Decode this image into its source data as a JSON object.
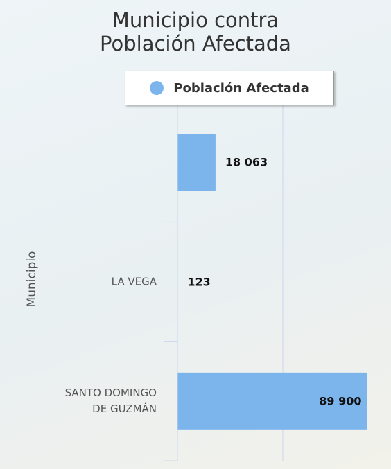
{
  "chart_data": {
    "type": "bar",
    "orientation": "horizontal",
    "title": "Municipio contra Población Afectada",
    "y_axis_label": "Municipio",
    "categories": [
      null,
      "LA VEGA",
      "SANTO DOMINGO DE GUZMÁN"
    ],
    "series": [
      {
        "name": "Población Afectada",
        "color": "#7cb5ec",
        "values": [
          18063,
          123,
          89900
        ],
        "value_labels": [
          "18 063",
          "123",
          "89 900"
        ]
      }
    ],
    "xlim": [
      0,
      100000
    ],
    "xticks": [
      0,
      50000
    ],
    "grid": true,
    "legend": "top"
  }
}
